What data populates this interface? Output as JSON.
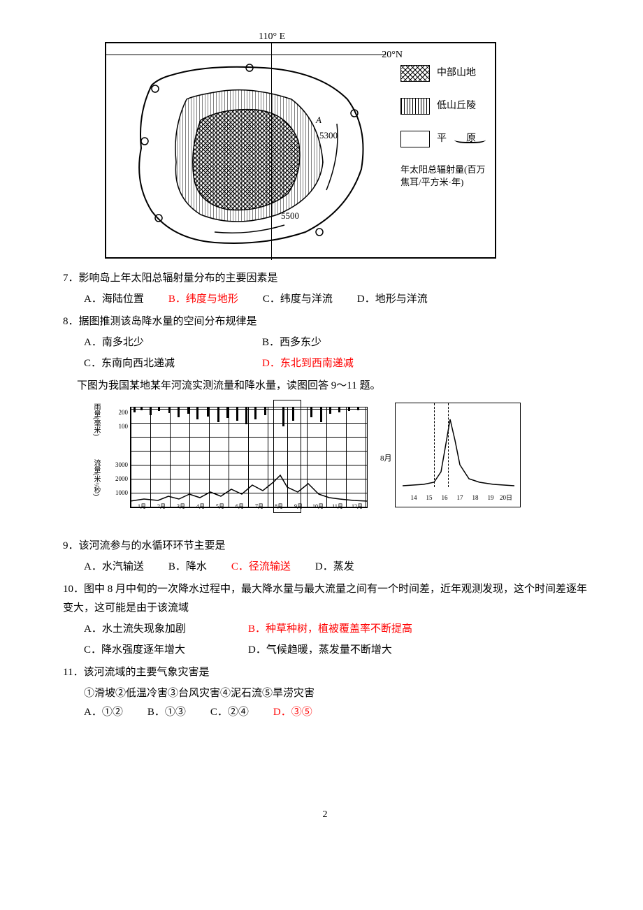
{
  "figure1": {
    "longitude": "110° E",
    "latitude": "20°N",
    "contour_5300": "5300",
    "contour_5500": "5500",
    "point_label": "A",
    "legend": {
      "mountain": "中部山地",
      "hills": "低山丘陵",
      "plain": "平　　原",
      "radiation": "年太阳总辐射量(百万焦耳/平方米·年)"
    }
  },
  "q7": {
    "text": "7．影响岛上年太阳总辐射量分布的主要因素是",
    "a": "A．海陆位置",
    "b": "B．纬度与地形",
    "c": "C．纬度与洋流",
    "d": "D．地形与洋流"
  },
  "q8": {
    "text": "8．据图推测该岛降水量的空间分布规律是",
    "a": "A．南多北少",
    "b": "B．西多东少",
    "c": "C．东南向西北递减",
    "d": "D．东北到西南递减"
  },
  "intro2": "下图为我国某地某年河流实测流量和降水量，读图回答 9～11 题。",
  "figure2": {
    "y_label_top": "雨量(毫米)",
    "y_label_bottom": "流量(米³/秒)",
    "y_ticks_top": [
      "200",
      "100"
    ],
    "y_ticks_bottom": [
      "3000",
      "2000",
      "1000"
    ],
    "months": [
      "1月",
      "2月",
      "3月",
      "4月",
      "5月",
      "6月",
      "7月",
      "8月",
      "9月",
      "10月",
      "11月",
      "12月"
    ],
    "month_label": "8月",
    "days": [
      "14",
      "15",
      "16",
      "17",
      "18",
      "19",
      "20日"
    ],
    "rain_positions": [
      5,
      15,
      28,
      40,
      55,
      68,
      82,
      95,
      110,
      125,
      138,
      152,
      165,
      178,
      192,
      218,
      232,
      258,
      272,
      285,
      298,
      312,
      325
    ],
    "rain_heights": [
      8,
      5,
      12,
      6,
      9,
      15,
      10,
      18,
      14,
      22,
      16,
      20,
      25,
      18,
      12,
      28,
      20,
      15,
      22,
      10,
      8,
      6,
      5
    ]
  },
  "q9": {
    "text": "9．该河流参与的水循环环节主要是",
    "a": "A．水汽输送",
    "b": "B．降水",
    "c": "C．径流输送",
    "d": "D．蒸发"
  },
  "q10": {
    "text": "10．图中 8 月中旬的一次降水过程中，最大降水量与最大流量之间有一个时间差，近年观测发现，这个时间差逐年变大，这可能是由于该流域",
    "a": "A．水土流失现象加剧",
    "b": "B．种草种树，植被覆盖率不断提高",
    "c": "C．降水强度逐年增大",
    "d": "D．气候趋暖，蒸发量不断增大"
  },
  "q11": {
    "text": "11．该河流域的主要气象灾害是",
    "choices": "①滑坡②低温冷害③台风灾害④泥石流⑤旱涝灾害",
    "a": "A．①②",
    "b": "B．①③",
    "c": "C．②④",
    "d": "D．③⑤"
  },
  "page_num": "2"
}
